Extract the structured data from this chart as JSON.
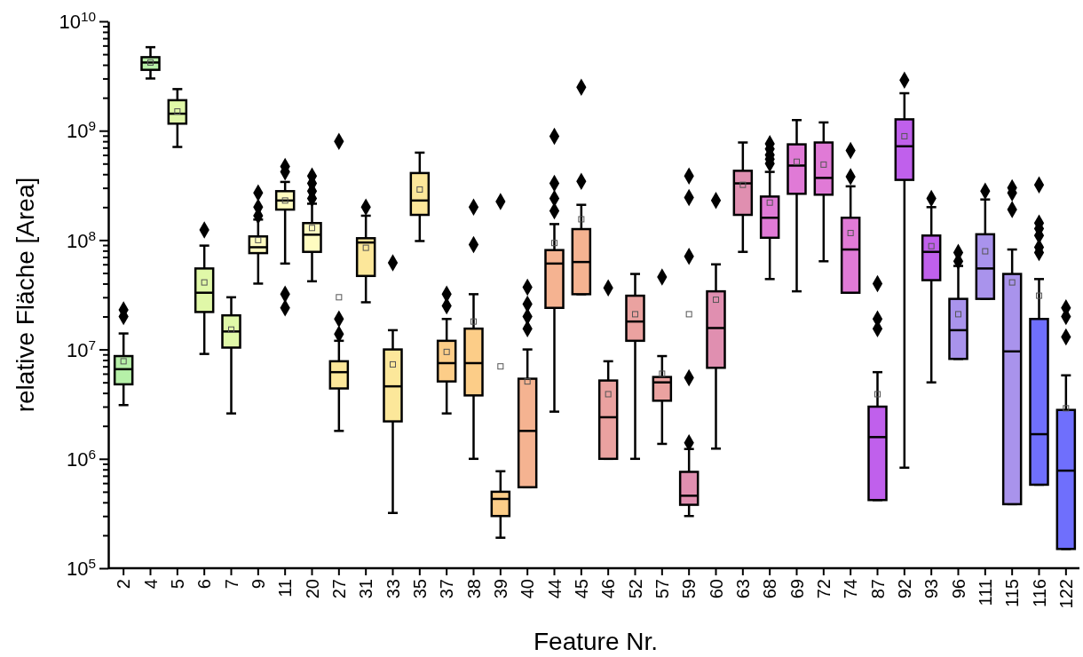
{
  "chart_data": {
    "type": "box",
    "xlabel": "Feature Nr.",
    "ylabel": "relative Fläche [Area]",
    "log": true,
    "grid": false,
    "marker": "diamond",
    "categories": [
      "2",
      "4",
      "5",
      "6",
      "7",
      "9",
      "11",
      "20",
      "27",
      "31",
      "33",
      "35",
      "37",
      "38",
      "39",
      "40",
      "44",
      "45",
      "46",
      "52",
      "57",
      "59",
      "60",
      "63",
      "68",
      "69",
      "72",
      "74",
      "87",
      "92",
      "93",
      "96",
      "111",
      "115",
      "116",
      "122"
    ],
    "colors": [
      "#b6f0a8",
      "#b8f0a8",
      "#e0f8a8",
      "#e0f8a8",
      "#e0f8a8",
      "#fffcc0",
      "#fffcc0",
      "#fffcc0",
      "#fce79a",
      "#fce79a",
      "#fce79a",
      "#fce79a",
      "#fccd88",
      "#fccd88",
      "#fccd88",
      "#f5b391",
      "#f5b391",
      "#f5b391",
      "#eaa2a0",
      "#eaa2a0",
      "#eaa2a0",
      "#e08fb0",
      "#e08fb0",
      "#e08fb0",
      "#e07ad6",
      "#e07ad6",
      "#e07ad6",
      "#e07ad6",
      "#c060ec",
      "#c060ec",
      "#c060ec",
      "#a993ec",
      "#a993ec",
      "#a993ec",
      "#6f6ffc",
      "#6f6ffc"
    ],
    "boxes": [
      {
        "low": 3100000.0,
        "q1": 4800000.0,
        "median": 6600000.0,
        "q3": 8700000.0,
        "high": 14000000.0,
        "mean": 7800000.0,
        "outliers": [
          23000000.0,
          20000000.0
        ]
      },
      {
        "low": 3000000000.0,
        "q1": 3600000000.0,
        "median": 4200000000.0,
        "q3": 4700000000.0,
        "high": 5800000000.0,
        "mean": 4200000000.0
      },
      {
        "low": 710000000.0,
        "q1": 1160000000.0,
        "median": 1430000000.0,
        "q3": 1900000000.0,
        "high": 2400000000.0,
        "mean": 1500000000.0
      },
      {
        "low": 9100000.0,
        "q1": 22000000.0,
        "median": 33000000.0,
        "q3": 55000000.0,
        "high": 89000000.0,
        "mean": 41000000.0,
        "outliers": [
          124000000.0
        ]
      },
      {
        "low": 2600000.0,
        "q1": 10400000.0,
        "median": 14600000.0,
        "q3": 20500000.0,
        "high": 30000000.0,
        "mean": 15200000.0
      },
      {
        "low": 40000000.0,
        "q1": 76000000.0,
        "median": 86000000.0,
        "q3": 108000000.0,
        "high": 154000000.0,
        "mean": 100000000.0,
        "outliers": [
          270000000.0,
          200000000.0,
          167000000.0
        ]
      },
      {
        "low": 61000000.0,
        "q1": 190000000.0,
        "median": 230000000.0,
        "q3": 280000000.0,
        "high": 340000000.0,
        "mean": 230000000.0,
        "outliers": [
          470000000.0,
          420000000.0,
          32000000.0,
          24000000.0
        ]
      },
      {
        "low": 42000000.0,
        "q1": 78000000.0,
        "median": 112000000.0,
        "q3": 143000000.0,
        "high": 215000000.0,
        "mean": 129000000.0,
        "outliers": [
          385000000.0,
          330000000.0,
          280000000.0,
          240000000.0
        ]
      },
      {
        "low": 1800000.0,
        "q1": 4400000.0,
        "median": 6200000.0,
        "q3": 7800000.0,
        "high": 12000000.0,
        "mean": 30000000.0,
        "outliers": [
          800000000.0,
          19000000.0,
          13800000.0
        ]
      },
      {
        "low": 27000000.0,
        "q1": 47000000.0,
        "median": 95000000.0,
        "q3": 104000000.0,
        "high": 167000000.0,
        "mean": 85000000.0,
        "outliers": [
          200000000.0
        ]
      },
      {
        "low": 320000.0,
        "q1": 2200000.0,
        "median": 4600000.0,
        "q3": 10000000.0,
        "high": 15000000.0,
        "mean": 7300000.0,
        "outliers": [
          62000000.0
        ]
      },
      {
        "low": 98000000.0,
        "q1": 170000000.0,
        "median": 230000000.0,
        "q3": 410000000.0,
        "high": 630000000.0,
        "mean": 290000000.0
      },
      {
        "low": 2600000.0,
        "q1": 5100000.0,
        "median": 7500000.0,
        "q3": 12000000.0,
        "high": 19000000.0,
        "mean": 9500000.0,
        "outliers": [
          32000000.0,
          25000000.0
        ]
      },
      {
        "low": 1000000.0,
        "q1": 3800000.0,
        "median": 7500000.0,
        "q3": 15500000.0,
        "high": 32000000.0,
        "mean": 18000000.0,
        "outliers": [
          200000000.0,
          91000000.0
        ]
      },
      {
        "low": 190000.0,
        "q1": 300000.0,
        "median": 430000.0,
        "q3": 500000.0,
        "high": 770000.0,
        "mean": 7000000.0,
        "outliers": [
          225000000.0
        ]
      },
      {
        "low": 550000.0,
        "q1": 550000.0,
        "median": 1800000.0,
        "q3": 5400000.0,
        "high": 10000000.0,
        "mean": 5100000.0,
        "outliers": [
          37000000.0,
          26000000.0,
          20000000.0,
          15500000.0
        ]
      },
      {
        "low": 2700000.0,
        "q1": 24000000.0,
        "median": 61000000.0,
        "q3": 81000000.0,
        "high": 140000000.0,
        "mean": 94000000.0,
        "outliers": [
          890000000.0,
          330000000.0,
          240000000.0,
          185000000.0
        ]
      },
      {
        "low": 32000000.0,
        "q1": 32000000.0,
        "median": 63000000.0,
        "q3": 126000000.0,
        "high": 210000000.0,
        "mean": 155000000.0,
        "outliers": [
          2500000000.0,
          345000000.0
        ]
      },
      {
        "low": 1000000.0,
        "q1": 1000000.0,
        "median": 2400000.0,
        "q3": 5200000.0,
        "high": 7800000.0,
        "mean": 3900000.0,
        "outliers": [
          36500000.0
        ]
      },
      {
        "low": 1000000.0,
        "q1": 12000000.0,
        "median": 18000000.0,
        "q3": 31000000.0,
        "high": 49000000.0,
        "mean": 21000000.0
      },
      {
        "low": 1370000.0,
        "q1": 3400000.0,
        "median": 5000000.0,
        "q3": 5600000.0,
        "high": 8700000.0,
        "mean": 6000000.0,
        "outliers": [
          46000000.0
        ]
      },
      {
        "low": 300000.0,
        "q1": 380000.0,
        "median": 460000.0,
        "q3": 760000.0,
        "high": 1230000.0,
        "mean": 21000000.0,
        "outliers": [
          385000000.0,
          245000000.0,
          71000000.0,
          5500000.0,
          1400000.0
        ]
      },
      {
        "low": 1240000.0,
        "q1": 6800000.0,
        "median": 15700000.0,
        "q3": 34000000.0,
        "high": 60000000.0,
        "mean": 28500000.0,
        "outliers": [
          230000000.0
        ]
      },
      {
        "low": 78000000.0,
        "q1": 170000000.0,
        "median": 330000000.0,
        "q3": 430000000.0,
        "high": 780000000.0,
        "mean": 320000000.0
      },
      {
        "low": 44000000.0,
        "q1": 105000000.0,
        "median": 160000000.0,
        "q3": 250000000.0,
        "high": 420000000.0,
        "mean": 220000000.0,
        "outliers": [
          760000000.0,
          680000000.0,
          600000000.0,
          550000000.0,
          500000000.0
        ]
      },
      {
        "low": 34000000.0,
        "q1": 265000000.0,
        "median": 480000000.0,
        "q3": 750000000.0,
        "high": 1250000000.0,
        "mean": 520000000.0
      },
      {
        "low": 64000000.0,
        "q1": 260000000.0,
        "median": 370000000.0,
        "q3": 780000000.0,
        "high": 1190000000.0,
        "mean": 490000000.0
      },
      {
        "low": 33000000.0,
        "q1": 33000000.0,
        "median": 82000000.0,
        "q3": 160000000.0,
        "high": 310000000.0,
        "mean": 116000000.0,
        "outliers": [
          660000000.0,
          380000000.0
        ]
      },
      {
        "low": 420000.0,
        "q1": 420000.0,
        "median": 1580000.0,
        "q3": 3000000.0,
        "high": 6200000.0,
        "mean": 3900000.0,
        "outliers": [
          40000000.0,
          19000000.0,
          15500000.0
        ]
      },
      {
        "low": 830000.0,
        "q1": 355000000.0,
        "median": 720000000.0,
        "q3": 1270000000.0,
        "high": 2200000000.0,
        "mean": 890000000.0,
        "outliers": [
          2900000000.0
        ]
      },
      {
        "low": 5000000.0,
        "q1": 43000000.0,
        "median": 78000000.0,
        "q3": 110000000.0,
        "high": 200000000.0,
        "mean": 88000000.0,
        "outliers": [
          240000000.0
        ]
      },
      {
        "low": 8200000.0,
        "q1": 8200000.0,
        "median": 15000000.0,
        "q3": 29000000.0,
        "high": 58000000.0,
        "mean": 21000000.0,
        "outliers": [
          77000000.0,
          64000000.0
        ]
      },
      {
        "low": 29000000.0,
        "q1": 29000000.0,
        "median": 55000000.0,
        "q3": 113000000.0,
        "high": 235000000.0,
        "mean": 79000000.0,
        "outliers": [
          280000000.0
        ]
      },
      {
        "low": 385000.0,
        "q1": 385000.0,
        "median": 9600000.0,
        "q3": 49000000.0,
        "high": 82000000.0,
        "mean": 41000000.0,
        "outliers": [
          300000000.0,
          270000000.0,
          190000000.0
        ]
      },
      {
        "low": 580000.0,
        "q1": 580000.0,
        "median": 1680000.0,
        "q3": 19000000.0,
        "high": 44000000.0,
        "mean": 31000000.0,
        "outliers": [
          320000000.0,
          143000000.0,
          127000000.0,
          110000000.0,
          86000000.0,
          77000000.0
        ]
      },
      {
        "low": 150000.0,
        "q1": 150000.0,
        "median": 780000.0,
        "q3": 2800000.0,
        "high": 5800000.0,
        "mean": 2900000.0,
        "outliers": [
          24000000.0,
          20000000.0,
          13000000.0
        ]
      }
    ],
    "ylim": [
      100000.0,
      10000000000.0
    ],
    "yticks": [
      {
        "value": 100000.0,
        "label": "10$^{5}$"
      },
      {
        "value": 200000.0,
        "label": null
      },
      {
        "value": 300000.0,
        "label": null
      },
      {
        "value": 400000.0,
        "label": null
      },
      {
        "value": 500000.0,
        "label": null
      },
      {
        "value": 600000.0,
        "label": null
      },
      {
        "value": 700000.0,
        "label": null
      },
      {
        "value": 800000.0,
        "label": null
      },
      {
        "value": 900000.0,
        "label": null
      },
      {
        "value": 1000000.0,
        "label": "10$^{6}$"
      },
      {
        "value": 2000000.0,
        "label": null
      },
      {
        "value": 3000000.0,
        "label": null
      },
      {
        "value": 4000000.0,
        "label": null
      },
      {
        "value": 5000000.0,
        "label": null
      },
      {
        "value": 6000000.0,
        "label": null
      },
      {
        "value": 7000000.0,
        "label": null
      },
      {
        "value": 8000000.0,
        "label": null
      },
      {
        "value": 9000000.0,
        "label": null
      },
      {
        "value": 10000000.0,
        "label": "10$^{7}$"
      },
      {
        "value": 20000000.0,
        "label": null
      },
      {
        "value": 30000000.0,
        "label": null
      },
      {
        "value": 40000000.0,
        "label": null
      },
      {
        "value": 50000000.0,
        "label": null
      },
      {
        "value": 60000000.0,
        "label": null
      },
      {
        "value": 70000000.0,
        "label": null
      },
      {
        "value": 80000000.0,
        "label": null
      },
      {
        "value": 90000000.0,
        "label": null
      },
      {
        "value": 100000000.0,
        "label": "10$^{8}$"
      },
      {
        "value": 200000000.0,
        "label": null
      },
      {
        "value": 300000000.0,
        "label": null
      },
      {
        "value": 400000000.0,
        "label": null
      },
      {
        "value": 500000000.0,
        "label": null
      },
      {
        "value": 600000000.0,
        "label": null
      },
      {
        "value": 700000000.0,
        "label": null
      },
      {
        "value": 800000000.0,
        "label": null
      },
      {
        "value": 900000000.0,
        "label": null
      },
      {
        "value": 1000000000.0,
        "label": "10$^{9}$"
      },
      {
        "value": 2000000000.0,
        "label": null
      },
      {
        "value": 3000000000.0,
        "label": null
      },
      {
        "value": 4000000000.0,
        "label": null
      },
      {
        "value": 5000000000.0,
        "label": null
      },
      {
        "value": 6000000000.0,
        "label": null
      },
      {
        "value": 7000000000.0,
        "label": null
      },
      {
        "value": 8000000000.0,
        "label": null
      },
      {
        "value": 9000000000.0,
        "label": null
      },
      {
        "value": 10000000000.0,
        "label": "10$^{10}$"
      }
    ]
  }
}
